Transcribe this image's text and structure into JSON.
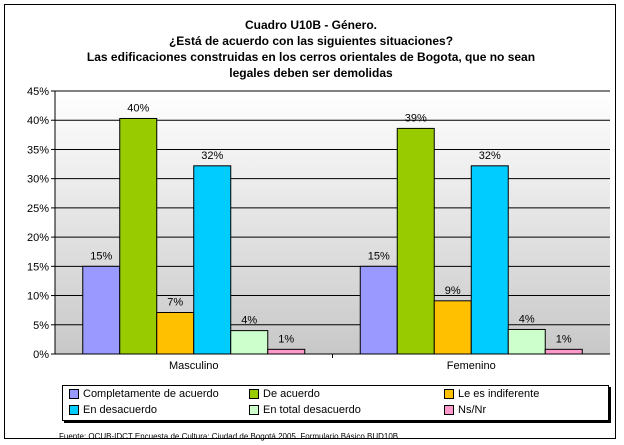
{
  "chart_data": {
    "type": "bar",
    "title_lines": [
      "Cuadro U10B - Género.",
      "¿Está de acuerdo con las siguientes situaciones?",
      "Las edificaciones construidas en los cerros orientales de Bogota, que no sean",
      "legales deben ser demolidas"
    ],
    "categories": [
      "Masculino",
      "Femenino"
    ],
    "y_ticks": [
      "0%",
      "5%",
      "10%",
      "15%",
      "20%",
      "25%",
      "30%",
      "35%",
      "40%",
      "45%"
    ],
    "ylim": [
      0,
      45
    ],
    "grid": true,
    "legend_position": "bottom",
    "series": [
      {
        "name": "Completamente de acuerdo",
        "color": "#9999ff",
        "values": [
          15,
          15
        ],
        "labels": [
          "15%",
          "15%"
        ]
      },
      {
        "name": "De acuerdo",
        "color": "#99cc00",
        "values": [
          40.3,
          38.6
        ],
        "labels": [
          "40%",
          "39%"
        ]
      },
      {
        "name": "Le es indiferente",
        "color": "#ffc000",
        "values": [
          7.1,
          9.1
        ],
        "labels": [
          "7%",
          "9%"
        ]
      },
      {
        "name": "En desacuerdo",
        "color": "#00ccff",
        "values": [
          32.2,
          32.2
        ],
        "labels": [
          "32%",
          "32%"
        ]
      },
      {
        "name": "En total desacuerdo",
        "color": "#ccffcc",
        "values": [
          4,
          4.2
        ],
        "labels": [
          "4%",
          "4%"
        ]
      },
      {
        "name": "Ns/Nr",
        "color": "#ff99cc",
        "values": [
          0.8,
          0.8
        ],
        "labels": [
          "1%",
          "1%"
        ]
      }
    ],
    "source": "Fuente: OCUB-IDCT Encuesta de Cultura: Ciudad de Bogotá 2005. Formulario Básico BUD10B"
  }
}
